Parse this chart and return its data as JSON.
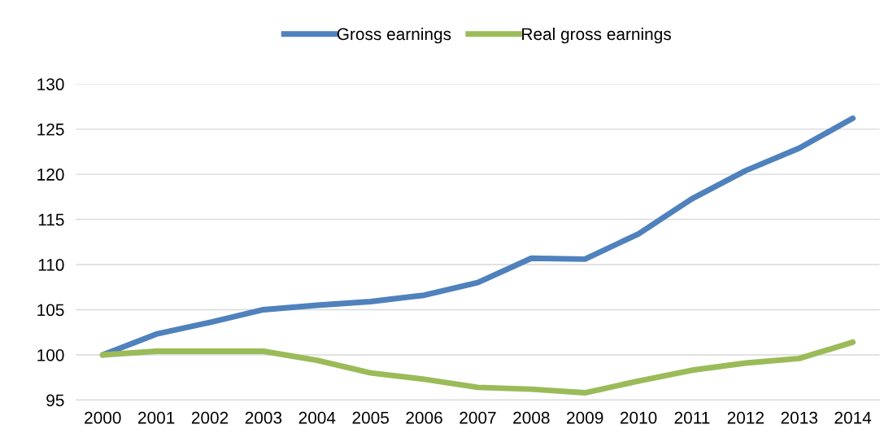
{
  "chart_data": {
    "type": "line",
    "categories": [
      "2000",
      "2001",
      "2002",
      "2003",
      "2004",
      "2005",
      "2006",
      "2007",
      "2008",
      "2009",
      "2010",
      "2011",
      "2012",
      "2013",
      "2014"
    ],
    "series": [
      {
        "name": "Gross earnings",
        "color": "#4f81bd",
        "values": [
          100,
          102.3,
          103.6,
          105.0,
          105.5,
          105.9,
          106.6,
          108.0,
          110.7,
          110.6,
          113.4,
          117.3,
          120.4,
          122.9,
          126.2
        ]
      },
      {
        "name": "Real gross earnings",
        "color": "#9bbb59",
        "values": [
          100,
          100.4,
          100.4,
          100.4,
          99.4,
          98.0,
          97.3,
          96.4,
          96.2,
          95.8,
          97.1,
          98.3,
          99.1,
          99.6,
          101.4
        ]
      }
    ],
    "ylim": [
      95,
      130
    ],
    "yticks": [
      95,
      100,
      105,
      110,
      115,
      120,
      125,
      130
    ],
    "grid": "y",
    "legend": "top",
    "marker": "none",
    "line_style": "solid"
  }
}
